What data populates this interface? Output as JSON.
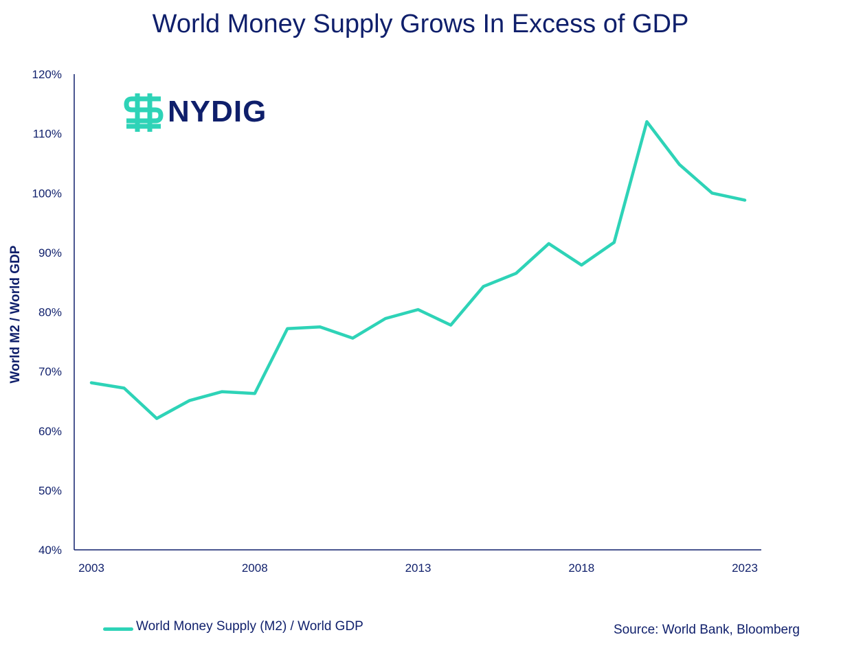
{
  "colors": {
    "navy": "#0f1f6b",
    "line": "#2ed3b7"
  },
  "logo": {
    "text": "NYDIG",
    "icon": "nydig-dollar-icon"
  },
  "source": "Source: World Bank, Bloomberg",
  "chart_data": {
    "type": "line",
    "title": "World Money Supply Grows In Excess of GDP",
    "xlabel": "",
    "ylabel": "World M2 / World GDP",
    "ylim": [
      40,
      120
    ],
    "xlim": [
      2003,
      2023
    ],
    "y_ticks": [
      40,
      50,
      60,
      70,
      80,
      90,
      100,
      110,
      120
    ],
    "y_tick_labels": [
      "40%",
      "50%",
      "60%",
      "70%",
      "80%",
      "90%",
      "100%",
      "110%",
      "120%"
    ],
    "x_ticks": [
      2003,
      2008,
      2013,
      2018,
      2023
    ],
    "x_tick_labels": [
      "2003",
      "2008",
      "2013",
      "2018",
      "2023"
    ],
    "grid": false,
    "legend": "bottom-left",
    "series": [
      {
        "name": "World Money Supply (M2) / World GDP",
        "color": "#2ed3b7",
        "x": [
          2003,
          2004,
          2005,
          2006,
          2007,
          2008,
          2009,
          2010,
          2011,
          2012,
          2013,
          2014,
          2015,
          2016,
          2017,
          2018,
          2019,
          2020,
          2021,
          2022,
          2023
        ],
        "values": [
          68.1,
          67.2,
          62.1,
          65.1,
          66.6,
          66.3,
          77.2,
          77.5,
          75.6,
          78.9,
          80.4,
          77.8,
          84.3,
          86.5,
          91.5,
          87.9,
          91.7,
          112.0,
          104.8,
          100.0,
          98.8
        ]
      }
    ]
  }
}
